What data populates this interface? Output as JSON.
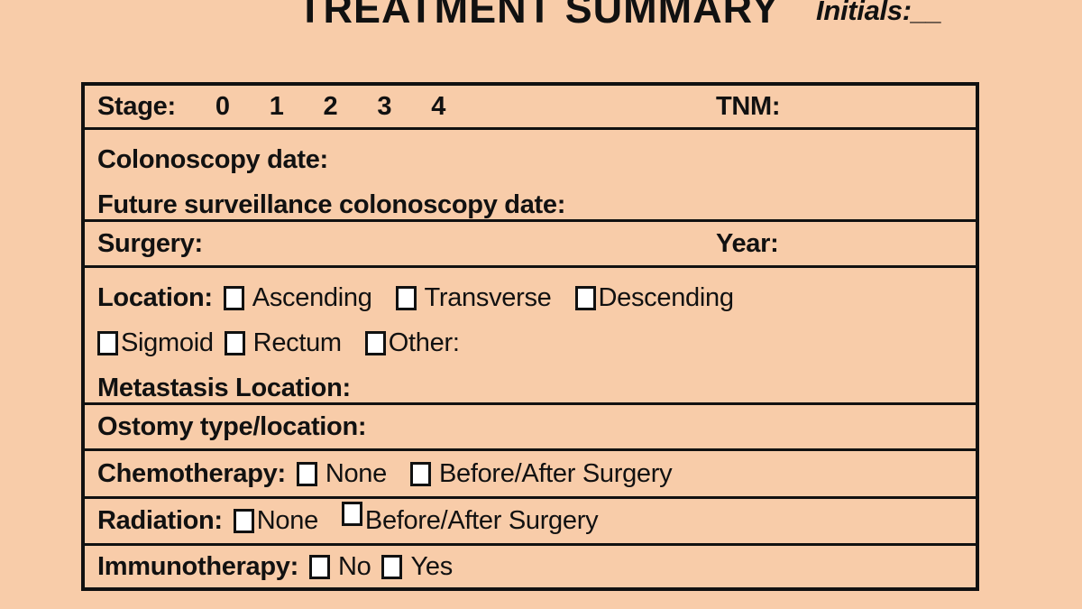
{
  "page": {
    "background_color": "#F8CCA9",
    "border_color": "#111111",
    "checkbox_fill": "#ffffff"
  },
  "header": {
    "title": "TREATMENT SUMMARY",
    "initials_label": "Initials:__"
  },
  "form": {
    "stage": {
      "label": "Stage:",
      "options": [
        "0",
        "1",
        "2",
        "3",
        "4"
      ],
      "tnm_label": "TNM:"
    },
    "colonoscopy": {
      "line1": "Colonoscopy date:",
      "line2": "Future surveillance colonoscopy date:"
    },
    "surgery": {
      "label": "Surgery:",
      "year_label": "Year:"
    },
    "location": {
      "label": "Location:",
      "options": [
        "Ascending",
        "Transverse",
        "Descending",
        "Sigmoid",
        "Rectum",
        "Other:"
      ],
      "metastasis_label": "Metastasis Location:"
    },
    "ostomy": {
      "label": "Ostomy type/location:"
    },
    "chemotherapy": {
      "label": "Chemotherapy:",
      "options": [
        "None",
        "Before/After Surgery"
      ]
    },
    "radiation": {
      "label": "Radiation:",
      "options": [
        "None",
        "Before/After Surgery"
      ]
    },
    "immunotherapy": {
      "label": "Immunotherapy:",
      "options": [
        "No",
        "Yes"
      ]
    }
  }
}
